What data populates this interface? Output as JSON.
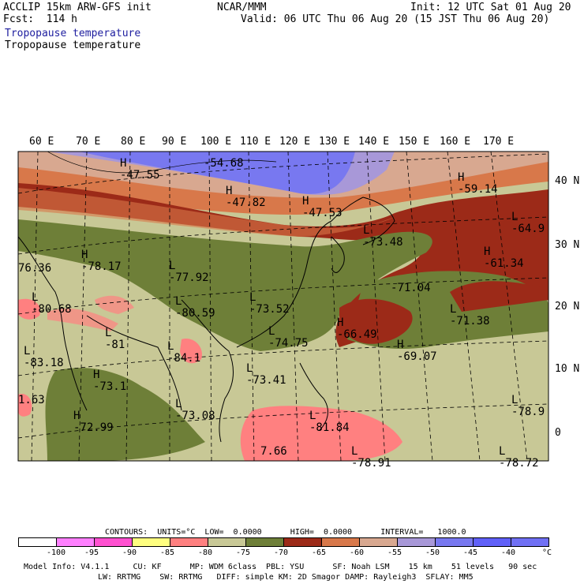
{
  "header": {
    "model": "ACCLIP 15km ARW-GFS init",
    "forecast": "Fcst:  114 h",
    "org": "NCAR/MMM",
    "init": "Init: 12 UTC Sat 01 Aug 20",
    "valid": "Valid: 06 UTC Thu 06 Aug 20 (15 JST Thu 06 Aug 20)",
    "field_blue": "Tropopause temperature",
    "field_black": "Tropopause temperature"
  },
  "axes": {
    "lon_labels": [
      "60 E",
      "70 E",
      "80 E",
      "90 E",
      "100 E",
      "110 E",
      "120 E",
      "130 E",
      "140 E",
      "150 E",
      "160 E",
      "170 E"
    ],
    "lat_labels": [
      "40 N",
      "30 N",
      "20 N",
      "10 N",
      "0"
    ]
  },
  "map_labels": [
    {
      "sym": "H",
      "val": "-47.55"
    },
    {
      "sym": "",
      "val": "-54.68"
    },
    {
      "sym": "H",
      "val": "-47.82"
    },
    {
      "sym": "H",
      "val": "-47.53"
    },
    {
      "sym": "H",
      "val": "-59.14"
    },
    {
      "sym": "L",
      "val": "-64.9"
    },
    {
      "sym": "L",
      "val": "-73.48"
    },
    {
      "sym": "H",
      "val": "-61.34"
    },
    {
      "sym": "H",
      "val": "-78.17"
    },
    {
      "sym": "L",
      "val": "-77.92"
    },
    {
      "sym": "",
      "val": "76.36"
    },
    {
      "sym": "L",
      "val": "-80.68"
    },
    {
      "sym": "L",
      "val": "-73.52"
    },
    {
      "sym": "",
      "val": "-71.04"
    },
    {
      "sym": "L",
      "val": "-71.38"
    },
    {
      "sym": "L",
      "val": "-80.59"
    },
    {
      "sym": "L",
      "val": "-81"
    },
    {
      "sym": "L",
      "val": "-74.75"
    },
    {
      "sym": "H",
      "val": "-66.49"
    },
    {
      "sym": "H",
      "val": "-69.07"
    },
    {
      "sym": "L",
      "val": "-83.18"
    },
    {
      "sym": "L",
      "val": "-84.1"
    },
    {
      "sym": "L",
      "val": "-73.41"
    },
    {
      "sym": "H",
      "val": "-73.1"
    },
    {
      "sym": "",
      "val": "1.63"
    },
    {
      "sym": "L",
      "val": "-73.08"
    },
    {
      "sym": "H",
      "val": "-72.99"
    },
    {
      "sym": "L",
      "val": "-81.84"
    },
    {
      "sym": "L",
      "val": "-78.9"
    },
    {
      "sym": "",
      "val": "7.66"
    },
    {
      "sym": "L",
      "val": "-78.91"
    },
    {
      "sym": "L",
      "val": "-78.72"
    }
  ],
  "colorbar": {
    "contours": "CONTOURS:  UNITS=°C  LOW=  0.0000      HIGH=  0.0000      INTERVAL=   1000.0",
    "colors": [
      "#ffffff",
      "#ff80ff",
      "#ff50d0",
      "#ffff80",
      "#ff8080",
      "#c8c896",
      "#6e7f38",
      "#9c2a18",
      "#d8784a",
      "#d8a890",
      "#a898d8",
      "#7878f0",
      "#6060f8",
      "#7070f4"
    ],
    "labels": [
      "-100",
      "-95",
      "-90",
      "-85",
      "-80",
      "-75",
      "-70",
      "-65",
      "-60",
      "-55",
      "-50",
      "-45",
      "-40",
      "°C"
    ]
  },
  "footer": {
    "line1": "Model Info: V4.1.1     CU: KF      MP: WDM 6class  PBL: YSU      SF: Noah LSM    15 km    51 levels   90 sec",
    "line2": "LW: RRTMG    SW: RRTMG   DIFF: simple KM: 2D Smagor DAMP: Rayleigh3  SFLAY: MM5"
  }
}
